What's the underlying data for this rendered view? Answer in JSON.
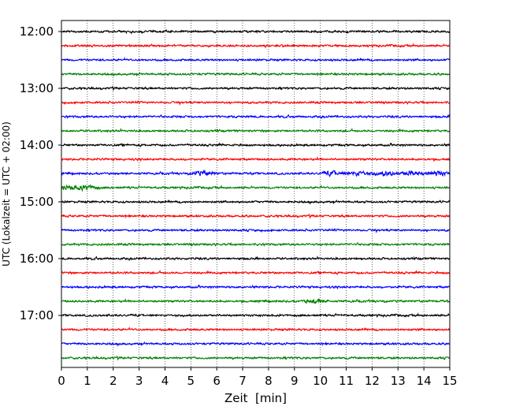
{
  "chart_data": {
    "type": "line",
    "title": "",
    "xlabel": "Zeit  [min]",
    "ylabel": "UTC (Lokalzeit = UTC + 02:00)",
    "xlim": [
      0,
      15
    ],
    "x_ticks": [
      "0",
      "1",
      "2",
      "3",
      "4",
      "5",
      "6",
      "7",
      "8",
      "9",
      "10",
      "11",
      "12",
      "13",
      "14",
      "15"
    ],
    "y_tick_labels": [
      "12:00",
      "13:00",
      "14:00",
      "15:00",
      "16:00",
      "17:00"
    ],
    "grid": "vertical dotted lines at each minute",
    "trace_interval_minutes": 15,
    "trace_colors": [
      "#000000",
      "#ff0000",
      "#0000ff",
      "#008000"
    ],
    "traces": [
      {
        "start": "12:00",
        "color": "#000000"
      },
      {
        "start": "12:15",
        "color": "#ff0000"
      },
      {
        "start": "12:30",
        "color": "#0000ff"
      },
      {
        "start": "12:45",
        "color": "#008000"
      },
      {
        "start": "13:00",
        "color": "#000000"
      },
      {
        "start": "13:15",
        "color": "#ff0000"
      },
      {
        "start": "13:30",
        "color": "#0000ff"
      },
      {
        "start": "13:45",
        "color": "#008000"
      },
      {
        "start": "14:00",
        "color": "#000000"
      },
      {
        "start": "14:15",
        "color": "#ff0000"
      },
      {
        "start": "14:30",
        "color": "#0000ff",
        "note_bursts_min": [
          5.5,
          10.5,
          11.5,
          12.5,
          13.5,
          14.5
        ]
      },
      {
        "start": "14:45",
        "color": "#008000",
        "note_bursts_min": [
          0.3,
          1.0
        ]
      },
      {
        "start": "15:00",
        "color": "#000000"
      },
      {
        "start": "15:15",
        "color": "#ff0000"
      },
      {
        "start": "15:30",
        "color": "#0000ff"
      },
      {
        "start": "15:45",
        "color": "#008000"
      },
      {
        "start": "16:00",
        "color": "#000000"
      },
      {
        "start": "16:15",
        "color": "#ff0000"
      },
      {
        "start": "16:30",
        "color": "#0000ff"
      },
      {
        "start": "16:45",
        "color": "#008000",
        "note_bursts_min": [
          9.8
        ]
      },
      {
        "start": "17:00",
        "color": "#000000"
      },
      {
        "start": "17:15",
        "color": "#ff0000"
      },
      {
        "start": "17:30",
        "color": "#0000ff"
      },
      {
        "start": "17:45",
        "color": "#008000"
      }
    ]
  }
}
